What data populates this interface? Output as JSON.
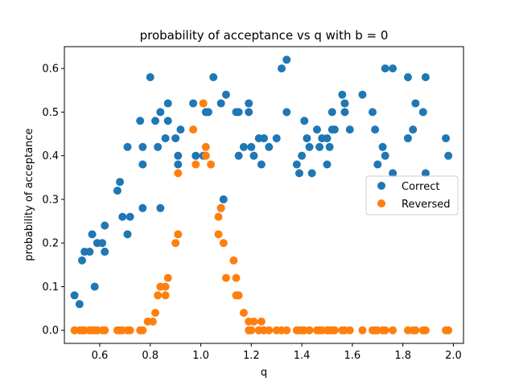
{
  "chart_data": {
    "type": "scatter",
    "title": "probability of acceptance vs q with b = 0",
    "xlabel": "q",
    "ylabel": "probability of acceptance",
    "xlim": [
      0.46,
      2.04
    ],
    "ylim": [
      -0.03,
      0.65
    ],
    "xticks": [
      0.6,
      0.8,
      1.0,
      1.2,
      1.4,
      1.6,
      1.8,
      2.0
    ],
    "xtick_labels": [
      "0.6",
      "0.8",
      "1.0",
      "1.2",
      "1.4",
      "1.6",
      "1.8",
      "2.0"
    ],
    "yticks": [
      0.0,
      0.1,
      0.2,
      0.3,
      0.4,
      0.5,
      0.6
    ],
    "ytick_labels": [
      "0.0",
      "0.1",
      "0.2",
      "0.3",
      "0.4",
      "0.5",
      "0.6"
    ],
    "grid": false,
    "legend_position": "center-right",
    "series": [
      {
        "name": "Correct",
        "color": "#1f77b4",
        "points": [
          [
            0.5,
            0.08
          ],
          [
            0.52,
            0.06
          ],
          [
            0.53,
            0.16
          ],
          [
            0.54,
            0.18
          ],
          [
            0.56,
            0.18
          ],
          [
            0.57,
            0.22
          ],
          [
            0.58,
            0.1
          ],
          [
            0.59,
            0.2
          ],
          [
            0.61,
            0.2
          ],
          [
            0.62,
            0.24
          ],
          [
            0.62,
            0.18
          ],
          [
            0.67,
            0.32
          ],
          [
            0.68,
            0.34
          ],
          [
            0.69,
            0.26
          ],
          [
            0.71,
            0.42
          ],
          [
            0.71,
            0.22
          ],
          [
            0.72,
            0.26
          ],
          [
            0.76,
            0.48
          ],
          [
            0.77,
            0.38
          ],
          [
            0.77,
            0.42
          ],
          [
            0.77,
            0.28
          ],
          [
            0.8,
            0.58
          ],
          [
            0.82,
            0.48
          ],
          [
            0.83,
            0.42
          ],
          [
            0.84,
            0.5
          ],
          [
            0.84,
            0.28
          ],
          [
            0.86,
            0.44
          ],
          [
            0.87,
            0.52
          ],
          [
            0.87,
            0.48
          ],
          [
            0.9,
            0.44
          ],
          [
            0.91,
            0.4
          ],
          [
            0.91,
            0.38
          ],
          [
            0.92,
            0.46
          ],
          [
            0.97,
            0.52
          ],
          [
            0.98,
            0.4
          ],
          [
            1.01,
            0.4
          ],
          [
            1.02,
            0.5
          ],
          [
            1.03,
            0.5
          ],
          [
            1.05,
            0.58
          ],
          [
            1.08,
            0.28
          ],
          [
            1.08,
            0.52
          ],
          [
            1.09,
            0.3
          ],
          [
            1.1,
            0.54
          ],
          [
            1.14,
            0.5
          ],
          [
            1.15,
            0.5
          ],
          [
            1.15,
            0.4
          ],
          [
            1.17,
            0.42
          ],
          [
            1.19,
            0.52
          ],
          [
            1.19,
            0.5
          ],
          [
            1.2,
            0.42
          ],
          [
            1.21,
            0.4
          ],
          [
            1.23,
            0.44
          ],
          [
            1.24,
            0.38
          ],
          [
            1.25,
            0.44
          ],
          [
            1.27,
            0.42
          ],
          [
            1.3,
            0.44
          ],
          [
            1.32,
            0.6
          ],
          [
            1.34,
            0.62
          ],
          [
            1.34,
            0.5
          ],
          [
            1.38,
            0.38
          ],
          [
            1.39,
            0.36
          ],
          [
            1.4,
            0.4
          ],
          [
            1.41,
            0.48
          ],
          [
            1.42,
            0.44
          ],
          [
            1.43,
            0.42
          ],
          [
            1.44,
            0.36
          ],
          [
            1.46,
            0.46
          ],
          [
            1.47,
            0.42
          ],
          [
            1.48,
            0.44
          ],
          [
            1.5,
            0.44
          ],
          [
            1.5,
            0.38
          ],
          [
            1.51,
            0.42
          ],
          [
            1.52,
            0.5
          ],
          [
            1.52,
            0.46
          ],
          [
            1.53,
            0.46
          ],
          [
            1.56,
            0.54
          ],
          [
            1.57,
            0.52
          ],
          [
            1.57,
            0.5
          ],
          [
            1.59,
            0.46
          ],
          [
            1.64,
            0.54
          ],
          [
            1.68,
            0.5
          ],
          [
            1.69,
            0.46
          ],
          [
            1.7,
            0.38
          ],
          [
            1.72,
            0.42
          ],
          [
            1.73,
            0.4
          ],
          [
            1.73,
            0.6
          ],
          [
            1.76,
            0.6
          ],
          [
            1.76,
            0.36
          ],
          [
            1.82,
            0.58
          ],
          [
            1.82,
            0.44
          ],
          [
            1.84,
            0.46
          ],
          [
            1.85,
            0.52
          ],
          [
            1.88,
            0.5
          ],
          [
            1.89,
            0.36
          ],
          [
            1.89,
            0.58
          ],
          [
            1.97,
            0.44
          ],
          [
            1.98,
            0.4
          ]
        ]
      },
      {
        "name": "Reversed",
        "color": "#ff7f0e",
        "points": [
          [
            0.5,
            0.0
          ],
          [
            0.52,
            0.0
          ],
          [
            0.53,
            0.0
          ],
          [
            0.54,
            0.0
          ],
          [
            0.56,
            0.0
          ],
          [
            0.57,
            0.0
          ],
          [
            0.58,
            0.0
          ],
          [
            0.59,
            0.0
          ],
          [
            0.61,
            0.0
          ],
          [
            0.62,
            0.0
          ],
          [
            0.67,
            0.0
          ],
          [
            0.68,
            0.0
          ],
          [
            0.69,
            0.0
          ],
          [
            0.71,
            0.0
          ],
          [
            0.72,
            0.0
          ],
          [
            0.76,
            0.0
          ],
          [
            0.77,
            0.0
          ],
          [
            0.79,
            0.02
          ],
          [
            0.81,
            0.02
          ],
          [
            0.82,
            0.04
          ],
          [
            0.83,
            0.08
          ],
          [
            0.84,
            0.1
          ],
          [
            0.86,
            0.1
          ],
          [
            0.86,
            0.08
          ],
          [
            0.87,
            0.12
          ],
          [
            0.9,
            0.2
          ],
          [
            0.91,
            0.22
          ],
          [
            0.91,
            0.36
          ],
          [
            0.97,
            0.46
          ],
          [
            0.98,
            0.38
          ],
          [
            1.01,
            0.52
          ],
          [
            1.02,
            0.42
          ],
          [
            1.02,
            0.4
          ],
          [
            1.04,
            0.38
          ],
          [
            1.07,
            0.26
          ],
          [
            1.07,
            0.22
          ],
          [
            1.08,
            0.28
          ],
          [
            1.09,
            0.2
          ],
          [
            1.1,
            0.12
          ],
          [
            1.13,
            0.16
          ],
          [
            1.14,
            0.12
          ],
          [
            1.14,
            0.08
          ],
          [
            1.15,
            0.08
          ],
          [
            1.17,
            0.04
          ],
          [
            1.19,
            0.02
          ],
          [
            1.19,
            0.0
          ],
          [
            1.2,
            0.0
          ],
          [
            1.21,
            0.02
          ],
          [
            1.23,
            0.0
          ],
          [
            1.24,
            0.02
          ],
          [
            1.25,
            0.0
          ],
          [
            1.27,
            0.0
          ],
          [
            1.3,
            0.0
          ],
          [
            1.32,
            0.0
          ],
          [
            1.34,
            0.0
          ],
          [
            1.38,
            0.0
          ],
          [
            1.39,
            0.0
          ],
          [
            1.4,
            0.0
          ],
          [
            1.41,
            0.0
          ],
          [
            1.43,
            0.0
          ],
          [
            1.46,
            0.0
          ],
          [
            1.47,
            0.0
          ],
          [
            1.48,
            0.0
          ],
          [
            1.5,
            0.0
          ],
          [
            1.51,
            0.0
          ],
          [
            1.52,
            0.0
          ],
          [
            1.53,
            0.0
          ],
          [
            1.56,
            0.0
          ],
          [
            1.57,
            0.0
          ],
          [
            1.59,
            0.0
          ],
          [
            1.64,
            0.0
          ],
          [
            1.68,
            0.0
          ],
          [
            1.69,
            0.0
          ],
          [
            1.7,
            0.0
          ],
          [
            1.72,
            0.0
          ],
          [
            1.73,
            0.0
          ],
          [
            1.76,
            0.0
          ],
          [
            1.82,
            0.0
          ],
          [
            1.84,
            0.0
          ],
          [
            1.85,
            0.0
          ],
          [
            1.88,
            0.0
          ],
          [
            1.89,
            0.0
          ],
          [
            1.97,
            0.0
          ],
          [
            1.98,
            0.0
          ]
        ]
      }
    ]
  }
}
